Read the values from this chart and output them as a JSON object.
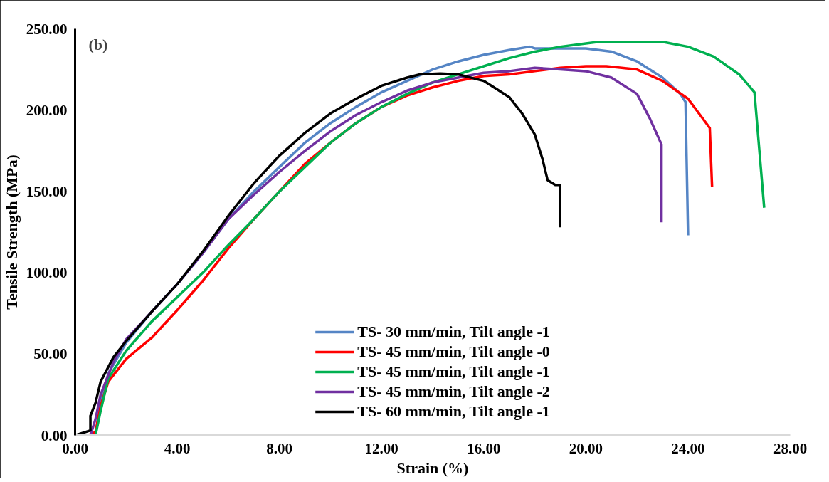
{
  "chart_data": {
    "type": "line",
    "xlabel": "Strain (%)",
    "ylabel": "Tensile Strength (MPa)",
    "annotations": [
      "(b)"
    ],
    "xlim": [
      0,
      28
    ],
    "ylim": [
      0,
      250
    ],
    "xticks": [
      {
        "value": 0,
        "label": "0.00"
      },
      {
        "value": 4,
        "label": "4.00"
      },
      {
        "value": 8,
        "label": "8.00"
      },
      {
        "value": 12,
        "label": "12.00"
      },
      {
        "value": 16,
        "label": "16.00"
      },
      {
        "value": 20,
        "label": "20.00"
      },
      {
        "value": 24,
        "label": "24.00"
      },
      {
        "value": 28,
        "label": "28.00"
      }
    ],
    "yticks": [
      {
        "value": 0,
        "label": "0.00"
      },
      {
        "value": 50,
        "label": "50.00"
      },
      {
        "value": 100,
        "label": "100.00"
      },
      {
        "value": 150,
        "label": "150.00"
      },
      {
        "value": 200,
        "label": "200.00"
      },
      {
        "value": 250,
        "label": "250.00"
      }
    ],
    "grid": false,
    "legend": "bottom",
    "marker": "none",
    "line_style": "solid",
    "series": [
      {
        "name": "TS- 30 mm/min, Tilt angle -1",
        "color": "#5585c5",
        "x": [
          0.8,
          1,
          1.3,
          2,
          3,
          4,
          5,
          6,
          7,
          8,
          9,
          10,
          11,
          12,
          13,
          14,
          15,
          16,
          17,
          17.8,
          18,
          20,
          21,
          22,
          23,
          23.7,
          23.9,
          24.0
        ],
        "values": [
          0,
          20,
          38,
          57,
          76,
          93,
          112,
          133,
          150,
          165,
          180,
          192,
          202,
          211,
          218,
          225,
          230,
          234,
          237,
          239,
          238,
          238,
          236,
          230,
          220,
          210,
          205,
          123
        ]
      },
      {
        "name": "TS- 45 mm/min, Tilt angle -0",
        "color": "#ff0000",
        "x": [
          0.5,
          0.8,
          1,
          1.3,
          2,
          3,
          4,
          5,
          6,
          7,
          8,
          9,
          10,
          11,
          12,
          13,
          14,
          15,
          16,
          17,
          18,
          19,
          20,
          20.8,
          22,
          23,
          24,
          24.85,
          24.94
        ],
        "values": [
          0,
          2,
          18,
          33,
          47,
          60,
          77,
          95,
          115,
          133,
          150,
          167,
          180,
          192,
          202,
          209,
          214,
          218,
          221,
          222,
          224,
          226,
          227,
          227,
          225,
          218,
          207,
          189,
          153
        ]
      },
      {
        "name": "TS- 45 mm/min, Tilt angle -1",
        "color": "#00b050",
        "x": [
          0.8,
          1,
          1.3,
          2,
          3,
          4,
          5,
          6,
          7,
          8,
          9,
          10,
          11,
          12,
          13,
          14,
          15,
          16,
          17,
          18,
          19,
          20,
          20.5,
          22,
          23,
          24,
          25,
          26,
          26.6,
          26.98
        ],
        "values": [
          0,
          15,
          35,
          52,
          70,
          85,
          100,
          117,
          133,
          150,
          165,
          180,
          192,
          202,
          210,
          217,
          222,
          227,
          232,
          236,
          239,
          241,
          242,
          242,
          242,
          239,
          233,
          222,
          211,
          140
        ]
      },
      {
        "name": "TS- 45 mm/min, Tilt angle -2",
        "color": "#7030a0",
        "x": [
          0.6,
          0.8,
          1,
          1.5,
          2,
          3,
          4,
          5,
          6,
          7,
          8,
          9,
          10,
          11,
          12,
          13,
          14,
          15,
          16,
          17,
          18,
          19,
          20,
          21,
          22,
          22.5,
          22.96,
          22.96
        ],
        "values": [
          0,
          10,
          25,
          45,
          59,
          76,
          93,
          112,
          133,
          148,
          162,
          175,
          187,
          197,
          205,
          212,
          217,
          220,
          223,
          224,
          226,
          225,
          224,
          220,
          210,
          195,
          179,
          131
        ]
      },
      {
        "name": "TS- 60 mm/min, Tilt angle -1",
        "color": "#000000",
        "x": [
          0,
          0.6,
          0.6,
          0.8,
          1,
          1.5,
          2,
          3,
          4,
          5,
          6,
          7,
          8,
          9,
          10,
          11,
          12,
          13,
          13.5,
          14.3,
          15,
          16,
          17,
          17.5,
          18,
          18.3,
          18.5,
          18.8,
          18.98,
          18.98
        ],
        "values": [
          0,
          3,
          12,
          20,
          33,
          48,
          58,
          76,
          93,
          113,
          135,
          155,
          172,
          186,
          198,
          207,
          215,
          220,
          222,
          222.5,
          222,
          218,
          208,
          198,
          185,
          170,
          157,
          154,
          154,
          128
        ]
      }
    ]
  }
}
